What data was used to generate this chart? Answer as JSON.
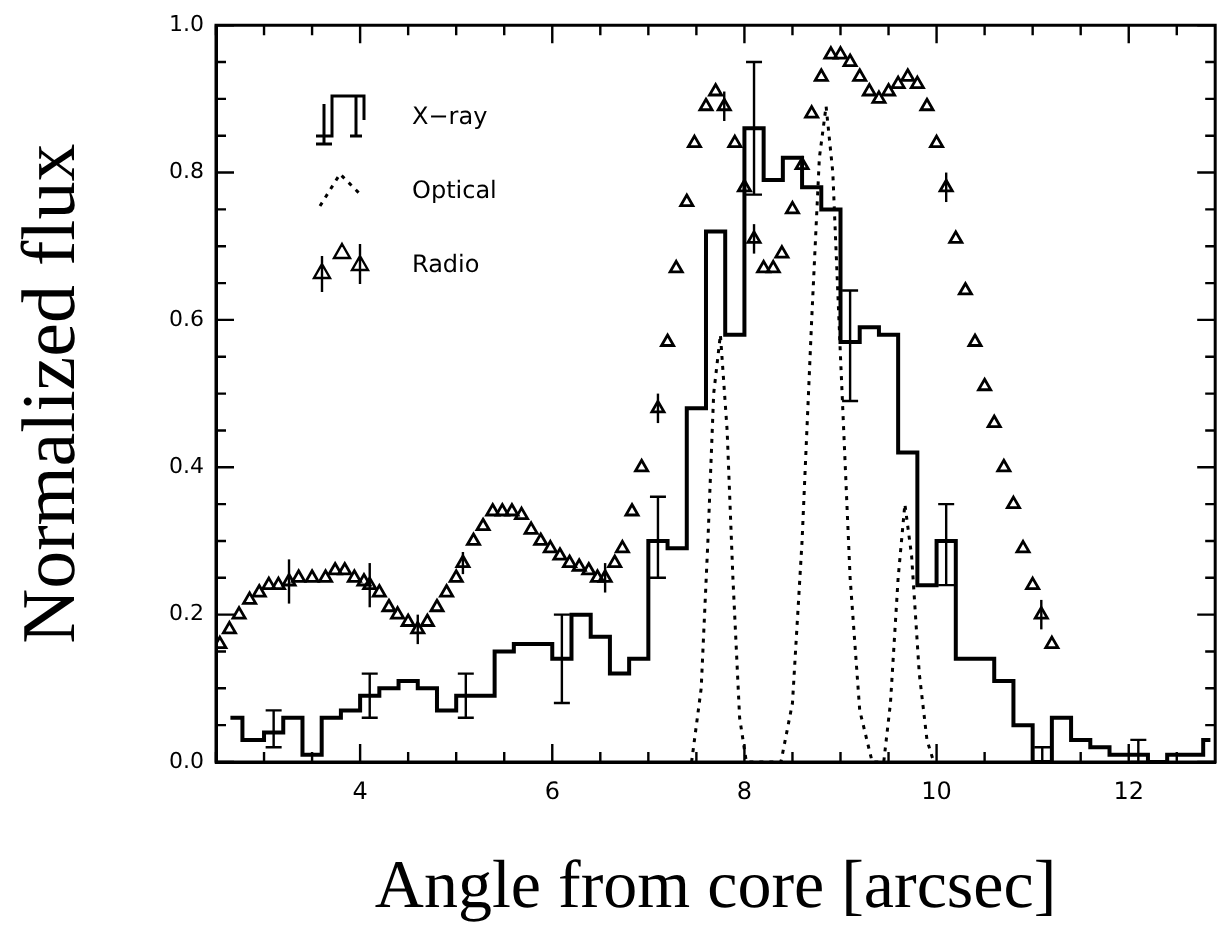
{
  "chart_data": {
    "type": "step",
    "xlabel": "Angle from core [arcsec]",
    "ylabel": "Normalized flux",
    "legend": "top left",
    "xlim": [
      2.5,
      12.9
    ],
    "ylim": [
      0,
      1.0
    ],
    "xticks": [
      {
        "value": 2.5,
        "label": null
      },
      {
        "value": 3,
        "label": null
      },
      {
        "value": 3.5,
        "label": null
      },
      4,
      {
        "value": 4.5,
        "label": null
      },
      {
        "value": 5,
        "label": null
      },
      {
        "value": 5.5,
        "label": null
      },
      6,
      {
        "value": 6.5,
        "label": null
      },
      {
        "value": 7,
        "label": null
      },
      {
        "value": 7.5,
        "label": null
      },
      8,
      {
        "value": 8.5,
        "label": null
      },
      {
        "value": 9,
        "label": null
      },
      {
        "value": 9.5,
        "label": null
      },
      10,
      {
        "value": 10.5,
        "label": null
      },
      {
        "value": 11,
        "label": null
      },
      {
        "value": 11.5,
        "label": null
      },
      12,
      {
        "value": 12.5,
        "label": null
      }
    ],
    "yticks": [
      {
        "value": 0,
        "label": "0.0"
      },
      {
        "value": 0.05,
        "label": null
      },
      {
        "value": 0.1,
        "label": null
      },
      {
        "value": 0.15,
        "label": null
      },
      {
        "value": 0.2,
        "label": "0.2"
      },
      {
        "value": 0.25,
        "label": null
      },
      {
        "value": 0.3,
        "label": null
      },
      {
        "value": 0.35,
        "label": null
      },
      {
        "value": 0.4,
        "label": "0.4"
      },
      {
        "value": 0.45,
        "label": null
      },
      {
        "value": 0.5,
        "label": null
      },
      {
        "value": 0.55,
        "label": null
      },
      {
        "value": 0.6,
        "label": "0.6"
      },
      {
        "value": 0.65,
        "label": null
      },
      {
        "value": 0.7,
        "label": null
      },
      {
        "value": 0.75,
        "label": null
      },
      {
        "value": 0.8,
        "label": "0.8"
      },
      {
        "value": 0.85,
        "label": null
      },
      {
        "value": 0.9,
        "label": null
      },
      {
        "value": 0.95,
        "label": null
      },
      {
        "value": 1.0,
        "label": "1.0"
      }
    ],
    "series": [
      {
        "name": "X−ray",
        "color": "#000000",
        "x": [
          2.65,
          2.9,
          3.1,
          3.3,
          3.5,
          3.7,
          3.9,
          4.1,
          4.3,
          4.5,
          4.7,
          4.9,
          5.1,
          5.3,
          5.5,
          5.7,
          5.9,
          6.1,
          6.3,
          6.5,
          6.7,
          6.9,
          7.1,
          7.3,
          7.5,
          7.7,
          7.9,
          8.1,
          8.3,
          8.5,
          8.7,
          8.9,
          9.1,
          9.3,
          9.5,
          9.7,
          9.9,
          10.1,
          10.3,
          10.5,
          10.7,
          10.9,
          11.1,
          11.3,
          11.5,
          11.7,
          11.9,
          12.1,
          12.3,
          12.5,
          12.7,
          12.85
        ],
        "values": [
          0.06,
          0.03,
          0.04,
          0.06,
          0.01,
          0.06,
          0.07,
          0.09,
          0.1,
          0.11,
          0.1,
          0.07,
          0.09,
          0.09,
          0.15,
          0.16,
          0.16,
          0.14,
          0.2,
          0.17,
          0.12,
          0.14,
          0.3,
          0.29,
          0.48,
          0.72,
          0.58,
          0.86,
          0.79,
          0.82,
          0.78,
          0.75,
          0.57,
          0.59,
          0.58,
          0.42,
          0.24,
          0.3,
          0.14,
          0.14,
          0.11,
          0.05,
          0.0,
          0.06,
          0.03,
          0.02,
          0.01,
          0.01,
          0.0,
          0.01,
          0.01,
          0.03
        ],
        "errors": [
          null,
          null,
          [
            0.02,
            0.07
          ],
          null,
          null,
          null,
          null,
          [
            0.06,
            0.12
          ],
          null,
          null,
          null,
          null,
          [
            0.06,
            0.12
          ],
          null,
          null,
          null,
          null,
          [
            0.08,
            0.2
          ],
          null,
          null,
          null,
          null,
          [
            0.25,
            0.36
          ],
          null,
          null,
          null,
          null,
          [
            0.77,
            0.95
          ],
          null,
          null,
          null,
          null,
          [
            0.49,
            0.64
          ],
          null,
          null,
          null,
          null,
          [
            0.24,
            0.35
          ],
          null,
          null,
          null,
          null,
          [
            0.0,
            0.02
          ],
          null,
          null,
          null,
          null,
          [
            0.0,
            0.03
          ],
          null,
          null,
          null,
          null
        ]
      },
      {
        "type": "line",
        "name": "Optical",
        "color": "#000000",
        "line_style": "dotted",
        "marker": "none",
        "x": [
          7.45,
          7.55,
          7.62,
          7.68,
          7.75,
          7.82,
          7.88,
          7.95,
          8.02,
          8.38,
          8.5,
          8.6,
          8.7,
          8.78,
          8.85,
          8.92,
          9.0,
          9.1,
          9.2,
          9.33,
          9.45,
          9.52,
          9.6,
          9.67,
          9.74,
          9.82,
          9.9,
          9.97
        ],
        "values": [
          0,
          0.1,
          0.3,
          0.5,
          0.58,
          0.45,
          0.25,
          0.06,
          0,
          0,
          0.08,
          0.3,
          0.6,
          0.82,
          0.89,
          0.8,
          0.55,
          0.25,
          0.07,
          0,
          0,
          0.08,
          0.25,
          0.35,
          0.28,
          0.12,
          0.03,
          0
        ]
      },
      {
        "type": "scatter",
        "name": "Radio",
        "color": "#000000",
        "marker": "triangle",
        "x": [
          2.54,
          2.64,
          2.74,
          2.85,
          2.95,
          3.05,
          3.15,
          3.26,
          3.36,
          3.5,
          3.64,
          3.74,
          3.84,
          3.94,
          4.04,
          4.1,
          4.2,
          4.3,
          4.39,
          4.5,
          4.6,
          4.7,
          4.8,
          4.9,
          5.0,
          5.07,
          5.18,
          5.28,
          5.38,
          5.48,
          5.58,
          5.68,
          5.78,
          5.88,
          5.98,
          6.08,
          6.18,
          6.28,
          6.38,
          6.47,
          6.55,
          6.65,
          6.73,
          6.83,
          6.93,
          7.1,
          7.2,
          7.29,
          7.4,
          7.48,
          7.6,
          7.7,
          7.79,
          7.9,
          8.0,
          8.1,
          8.2,
          8.3,
          8.39,
          8.5,
          8.6,
          8.7,
          8.8,
          8.9,
          9.0,
          9.1,
          9.2,
          9.3,
          9.4,
          9.5,
          9.6,
          9.7,
          9.8,
          9.9,
          10.0,
          10.1,
          10.2,
          10.3,
          10.4,
          10.5,
          10.6,
          10.7,
          10.8,
          10.9,
          11.0,
          11.09,
          11.2
        ],
        "values": [
          0.16,
          0.18,
          0.2,
          0.22,
          0.23,
          0.24,
          0.24,
          0.245,
          0.25,
          0.25,
          0.25,
          0.26,
          0.26,
          0.25,
          0.245,
          0.24,
          0.23,
          0.21,
          0.2,
          0.19,
          0.18,
          0.19,
          0.21,
          0.23,
          0.25,
          0.27,
          0.3,
          0.32,
          0.34,
          0.34,
          0.34,
          0.335,
          0.315,
          0.3,
          0.29,
          0.28,
          0.27,
          0.265,
          0.26,
          0.25,
          0.25,
          0.27,
          0.29,
          0.34,
          0.4,
          0.48,
          0.57,
          0.67,
          0.76,
          0.84,
          0.89,
          0.91,
          0.89,
          0.84,
          0.78,
          0.71,
          0.67,
          0.67,
          0.69,
          0.75,
          0.81,
          0.88,
          0.93,
          0.96,
          0.96,
          0.95,
          0.93,
          0.91,
          0.9,
          0.91,
          0.92,
          0.93,
          0.92,
          0.89,
          0.84,
          0.78,
          0.71,
          0.64,
          0.57,
          0.51,
          0.46,
          0.4,
          0.35,
          0.29,
          0.24,
          0.2,
          0.16
        ],
        "errors": [
          null,
          null,
          null,
          null,
          null,
          null,
          null,
          0.03,
          null,
          null,
          null,
          null,
          null,
          null,
          null,
          0.03,
          null,
          null,
          null,
          null,
          0.02,
          null,
          null,
          null,
          null,
          0.015,
          null,
          null,
          null,
          null,
          null,
          null,
          null,
          null,
          null,
          null,
          null,
          null,
          null,
          null,
          0.02,
          null,
          null,
          null,
          null,
          0.02,
          null,
          null,
          null,
          null,
          null,
          null,
          0.02,
          null,
          null,
          0.02,
          null,
          null,
          null,
          null,
          null,
          null,
          null,
          null,
          null,
          null,
          null,
          null,
          null,
          null,
          null,
          null,
          null,
          null,
          null,
          0.02,
          null,
          null,
          null,
          null,
          null,
          null,
          null,
          null,
          null,
          0.02,
          null
        ]
      }
    ]
  }
}
